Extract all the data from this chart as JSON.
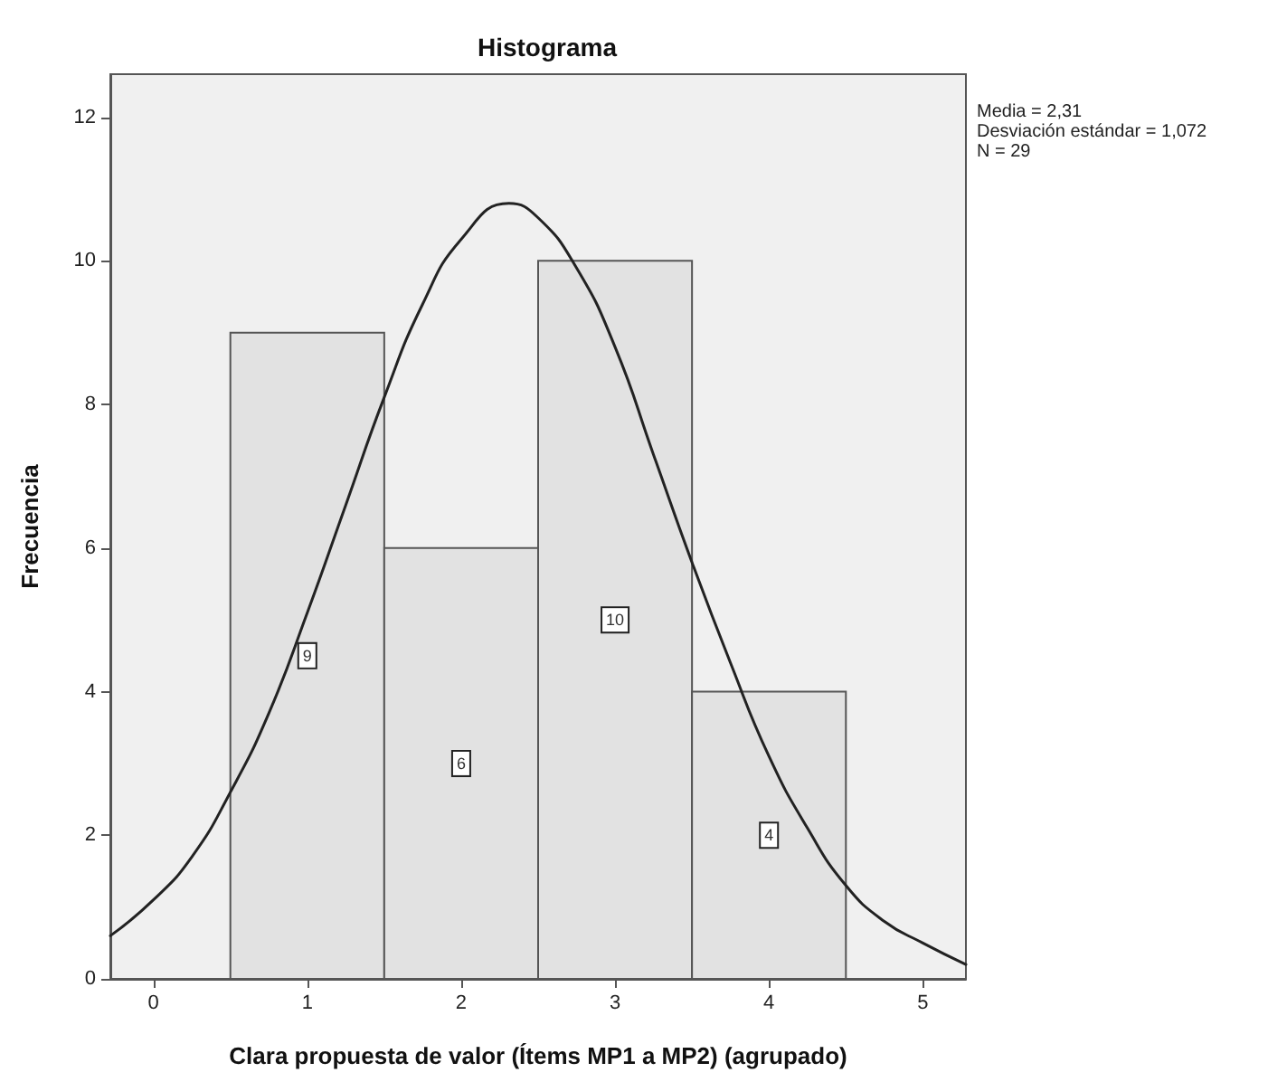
{
  "chart_data": {
    "type": "histogram",
    "title": "Histograma",
    "xlabel": "Clara propuesta de valor (Ítems MP1 a MP2) (agrupado)",
    "ylabel": "Frecuencia",
    "annotations": [
      "Media = 2,31",
      "Desviación estándar = 1,072",
      "N = 29"
    ],
    "bins": [
      0.5,
      1.5,
      2.5,
      3.5,
      4.5
    ],
    "series": [
      {
        "color": "#e2e2e2",
        "values": [
          9,
          6,
          10,
          4
        ],
        "value_labels": [
          "9",
          "6",
          "10",
          "4"
        ]
      },
      {
        "type": "line",
        "color": "#222222",
        "x": [
          -0.28,
          0,
          0.25,
          0.5,
          0.75,
          1,
          1.25,
          1.5,
          1.75,
          2,
          2.31,
          2.5,
          2.75,
          3,
          3.25,
          3.5,
          3.75,
          4,
          4.25,
          4.5,
          4.75,
          5,
          5.28
        ],
        "values": [
          0.6,
          1.1,
          1.7,
          2.6,
          3.7,
          5.1,
          6.6,
          8.1,
          9.4,
          10.3,
          10.8,
          10.6,
          9.9,
          8.8,
          7.3,
          5.8,
          4.4,
          3.1,
          2.1,
          1.3,
          0.8,
          0.5,
          0.2
        ]
      }
    ],
    "xlim": [
      -0.28,
      5.28
    ],
    "xticks": [
      0,
      1,
      2,
      3,
      4,
      5
    ],
    "ylim": [
      0,
      12.6
    ],
    "yticks": [
      0,
      2,
      4,
      6,
      8,
      10,
      12
    ],
    "marker": "none",
    "line_style": "solid"
  }
}
